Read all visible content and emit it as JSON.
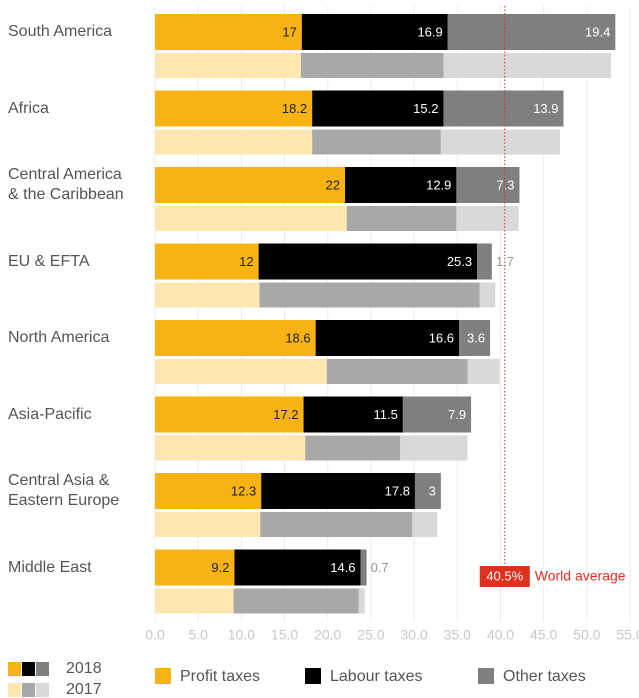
{
  "chart_data": {
    "type": "stacked-bar-horizontal",
    "categories": [
      "South America",
      "Africa",
      "Central America\n& the Caribbean",
      "EU & EFTA",
      "North America",
      "Asia-Pacific",
      "Central Asia &\nEastern Europe",
      "Middle East"
    ],
    "years": [
      "2018",
      "2017"
    ],
    "series": [
      {
        "name": "Profit taxes",
        "color": "#f7b313",
        "light_color": "#fde6af",
        "text_color": "#222",
        "values": [
          17.0,
          18.2,
          22.0,
          12.0,
          18.6,
          17.2,
          12.3,
          9.2
        ],
        "values_2017": [
          16.9,
          18.2,
          22.2,
          12.1,
          19.9,
          17.4,
          12.2,
          9.1
        ]
      },
      {
        "name": "Labour taxes",
        "color": "#000000",
        "light_color": "#a8a8a8",
        "text_color": "#fff",
        "values": [
          16.9,
          15.2,
          12.9,
          25.3,
          16.6,
          11.5,
          17.8,
          14.6
        ],
        "values_2017": [
          16.5,
          14.9,
          12.7,
          25.5,
          16.3,
          11.0,
          17.6,
          14.5
        ]
      },
      {
        "name": "Other taxes",
        "color": "#7f7f7f",
        "light_color": "#d9d9d9",
        "text_color": "#fff",
        "values": [
          19.4,
          13.9,
          7.3,
          1.7,
          3.6,
          7.9,
          3.0,
          0.7
        ],
        "values_2017": [
          19.4,
          13.8,
          7.2,
          1.8,
          3.7,
          7.8,
          2.9,
          0.7
        ]
      }
    ],
    "xlim": [
      0,
      55
    ],
    "xticks": [
      {
        "value": 0,
        "label": "0.0"
      },
      {
        "value": 5,
        "label": "5.0"
      },
      {
        "value": 10,
        "label": "10.0"
      },
      {
        "value": 15,
        "label": "15.0"
      },
      {
        "value": 20,
        "label": "20.0"
      },
      {
        "value": 25,
        "label": "25.0"
      },
      {
        "value": 30,
        "label": "30.0"
      },
      {
        "value": 35,
        "label": "35.0"
      },
      {
        "value": 40,
        "label": "40.0"
      },
      {
        "value": 45,
        "label": "45.0"
      },
      {
        "value": 50,
        "label": "50.0"
      },
      {
        "value": 55,
        "label": "55.0"
      }
    ],
    "grid": true,
    "reference_line": {
      "value": 40.5,
      "label": "40.5%",
      "text": "World average",
      "color": "#e0301e"
    }
  }
}
